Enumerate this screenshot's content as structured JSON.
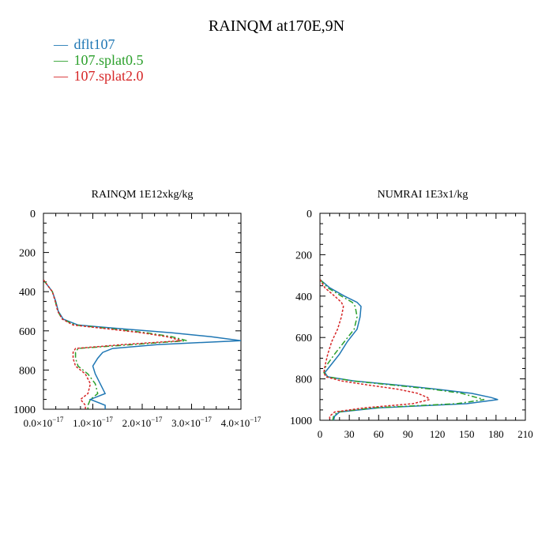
{
  "title": "RAINQM at170E,9N",
  "legend": [
    {
      "name": "dflt107",
      "color": "#1f77b4",
      "dash": "solid"
    },
    {
      "name": "107.splat0.5",
      "color": "#2ca02c",
      "dash": "dashdot"
    },
    {
      "name": "107.splat2.0",
      "color": "#d62728",
      "dash": "dotted"
    }
  ],
  "legend_symbol": "—",
  "chart_data": [
    {
      "type": "line",
      "title": "RAINQM  1E12xkg/kg",
      "ylabel": "",
      "xlabel": "",
      "ylim": [
        1000,
        0
      ],
      "xlim": [
        0,
        4e-17
      ],
      "yticks": [
        0,
        200,
        400,
        600,
        800,
        1000
      ],
      "xticks": [
        {
          "mant": "0.0",
          "exp": "−17",
          "value": 0
        },
        {
          "mant": "1.0",
          "exp": "−17",
          "value": 1e-17
        },
        {
          "mant": "2.0",
          "exp": "−17",
          "value": 2e-17
        },
        {
          "mant": "3.0",
          "exp": "−17",
          "value": 3e-17
        },
        {
          "mant": "4.0",
          "exp": "−17",
          "value": 4e-17
        }
      ],
      "y": [
        340,
        400,
        450,
        500,
        540,
        570,
        590,
        610,
        630,
        650,
        670,
        690,
        710,
        740,
        780,
        820,
        870,
        920,
        950,
        980,
        1000
      ],
      "series": [
        {
          "name": "dflt107",
          "values": [
            0,
            1.8e-18,
            2.5e-18,
            3e-18,
            4e-18,
            7e-18,
            1.6e-17,
            2.6e-17,
            3.4e-17,
            4e-17,
            2.3e-17,
            1.4e-17,
            1.2e-17,
            1.1e-17,
            1e-17,
            1.05e-17,
            1.15e-17,
            1.25e-17,
            9.5e-18,
            1.25e-17,
            1.25e-17
          ]
        },
        {
          "name": "107.splat0.5",
          "values": [
            0,
            1.8e-18,
            2.4e-18,
            2.9e-18,
            3.8e-18,
            6.5e-18,
            1.4e-17,
            2.1e-17,
            2.6e-17,
            2.9e-17,
            1.8e-17,
            7e-18,
            6.5e-18,
            6.5e-18,
            7e-18,
            9e-18,
            1.05e-17,
            1.1e-17,
            9.5e-18,
            9e-18,
            9e-18
          ]
        },
        {
          "name": "107.splat2.0",
          "values": [
            0,
            1.8e-18,
            2.4e-18,
            2.9e-18,
            3.8e-18,
            6e-18,
            1.3e-17,
            2e-17,
            2.5e-17,
            2.8e-17,
            1.6e-17,
            6.5e-18,
            6e-18,
            6e-18,
            6.5e-18,
            8.5e-18,
            9.5e-18,
            9e-18,
            7.5e-18,
            8.5e-18,
            8.5e-18
          ]
        }
      ]
    },
    {
      "type": "line",
      "title": "NUMRAI  1E3x1/kg",
      "ylabel": "",
      "xlabel": "",
      "ylim": [
        1000,
        0
      ],
      "xlim": [
        0,
        210
      ],
      "yticks": [
        0,
        200,
        400,
        600,
        800,
        1000
      ],
      "xticks": [
        {
          "mant": "0",
          "exp": "",
          "value": 0
        },
        {
          "mant": "30",
          "exp": "",
          "value": 30
        },
        {
          "mant": "60",
          "exp": "",
          "value": 60
        },
        {
          "mant": "90",
          "exp": "",
          "value": 90
        },
        {
          "mant": "120",
          "exp": "",
          "value": 120
        },
        {
          "mant": "150",
          "exp": "",
          "value": 150
        },
        {
          "mant": "180",
          "exp": "",
          "value": 180
        },
        {
          "mant": "210",
          "exp": "",
          "value": 210
        }
      ],
      "y": [
        320,
        360,
        400,
        430,
        450,
        500,
        560,
        620,
        680,
        740,
        770,
        790,
        810,
        830,
        850,
        870,
        890,
        900,
        920,
        940,
        960,
        980,
        1000
      ],
      "series": [
        {
          "name": "dflt107",
          "values": [
            0,
            10,
            25,
            38,
            42,
            41,
            38,
            28,
            20,
            10,
            5,
            8,
            35,
            80,
            120,
            155,
            175,
            182,
            150,
            60,
            20,
            15,
            14
          ]
        },
        {
          "name": "107.splat0.5",
          "values": [
            0,
            8,
            22,
            33,
            36,
            38,
            35,
            25,
            15,
            6,
            4,
            8,
            33,
            75,
            115,
            145,
            160,
            168,
            140,
            55,
            18,
            14,
            13
          ]
        },
        {
          "name": "107.splat2.0",
          "values": [
            0,
            5,
            15,
            22,
            24,
            22,
            18,
            12,
            8,
            5,
            4,
            6,
            22,
            50,
            80,
            100,
            110,
            112,
            95,
            45,
            15,
            10,
            10
          ]
        }
      ]
    }
  ]
}
